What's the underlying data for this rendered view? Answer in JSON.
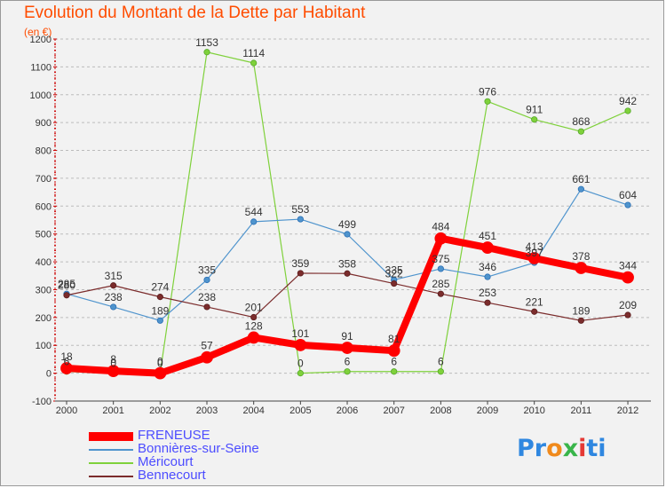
{
  "title": "Evolution du Montant de la Dette par Habitant",
  "subtitle": "(en €)",
  "logo": {
    "letters": [
      "P",
      "r",
      "o",
      "x",
      "i",
      "t",
      "i"
    ],
    "colors": [
      "#2f87e0",
      "#2f87e0",
      "#f08a1c",
      "#39b54a",
      "#e53935",
      "#2f87e0",
      "#2f87e0"
    ]
  },
  "chart_data": {
    "type": "line",
    "title": "Evolution du Montant de la Dette par Habitant",
    "subtitle": "(en €)",
    "xlabel": "",
    "ylabel": "",
    "x": [
      "2000",
      "2001",
      "2002",
      "2003",
      "2004",
      "2005",
      "2006",
      "2007",
      "2008",
      "2009",
      "2010",
      "2011",
      "2012"
    ],
    "ylim": [
      -100,
      1200
    ],
    "yticks": [
      -100,
      0,
      100,
      200,
      300,
      400,
      500,
      600,
      700,
      800,
      900,
      1000,
      1100,
      1200
    ],
    "grid": "horizontal dashed",
    "legend_position": "bottom-left",
    "series": [
      {
        "name": "FRENEUSE",
        "color": "#ff0000",
        "values": [
          18,
          8,
          0,
          57,
          128,
          101,
          91,
          81,
          484,
          451,
          413,
          378,
          344
        ]
      },
      {
        "name": "Bonnières-sur-Seine",
        "color": "#4f94cd",
        "values": [
          285,
          238,
          189,
          335,
          544,
          553,
          499,
          335,
          375,
          346,
          397,
          661,
          604
        ]
      },
      {
        "name": "Méricourt",
        "color": "#7fd13b",
        "values": [
          6,
          0,
          0,
          1153,
          1114,
          0,
          6,
          6,
          6,
          976,
          911,
          868,
          942
        ]
      },
      {
        "name": "Bennecourt",
        "color": "#7b2c2c",
        "values": [
          280,
          315,
          274,
          238,
          201,
          359,
          358,
          322,
          285,
          253,
          221,
          189,
          209
        ]
      }
    ]
  }
}
